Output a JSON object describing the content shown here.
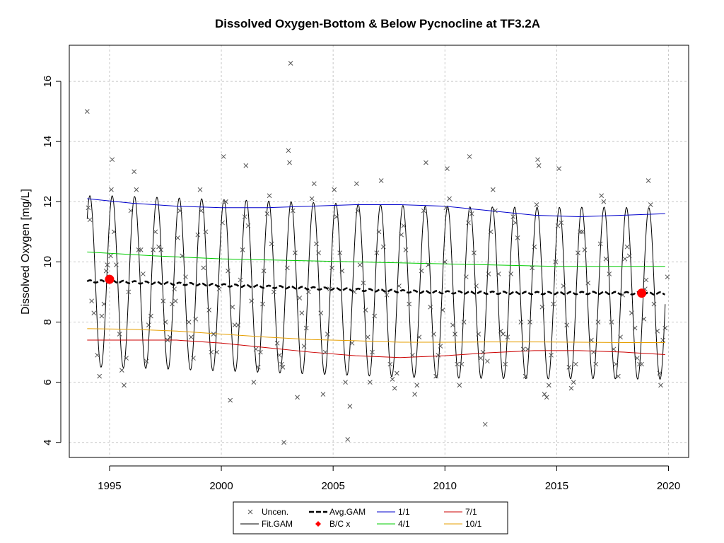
{
  "chart_data": {
    "type": "scatter",
    "title": "Dissolved Oxygen-Bottom & Below Pycnocline at TF3.2A",
    "xlabel": "",
    "ylabel": "Dissolved Oxygen [mg/L]",
    "xlim": [
      1993.2,
      2020.9
    ],
    "ylim": [
      3.5,
      17.2
    ],
    "x_ticks": [
      "1995",
      "2000",
      "2005",
      "2010",
      "2015",
      "2020"
    ],
    "y_ticks": [
      "4",
      "6",
      "8",
      "10",
      "12",
      "14",
      "16"
    ],
    "grid": true,
    "legend_position": "bottom",
    "legend": {
      "uncen": "Uncen.",
      "fit": "Fit.GAM",
      "avg": "Avg.GAM",
      "bc": "B/C x",
      "d11": "1/1",
      "d41": "4/1",
      "d71": "7/1",
      "d101": "10/1"
    },
    "colors": {
      "points": "#555555",
      "fit": "#000000",
      "avg": "#000000",
      "bc": "#ff0000",
      "d11": "#0000cc",
      "d41": "#00cc00",
      "d71": "#cc0000",
      "d101": "#e69f00",
      "grid": "#c8c8c8"
    },
    "fit_gam": {
      "amplitude": 2.85,
      "phase_peak_fraction": 0.12,
      "start": 1994.0,
      "end": 2019.85
    },
    "series": [
      {
        "name": "Avg.GAM",
        "x": [
          1994.0,
          1995.0,
          1997.0,
          1999.0,
          2001.0,
          2003.0,
          2005.0,
          2007.0,
          2009.0,
          2011.0,
          2013.0,
          2015.0,
          2017.0,
          2019.0,
          2019.85
        ],
        "y": [
          9.35,
          9.35,
          9.3,
          9.25,
          9.2,
          9.15,
          9.1,
          9.05,
          9.0,
          8.98,
          8.97,
          8.96,
          8.97,
          8.95,
          8.95
        ]
      },
      {
        "name": "1/1",
        "x": [
          1994.0,
          1996.0,
          1998.0,
          2000.0,
          2002.0,
          2004.0,
          2006.0,
          2008.0,
          2010.0,
          2012.0,
          2014.0,
          2016.0,
          2018.0,
          2019.85
        ],
        "y": [
          12.1,
          11.95,
          11.85,
          11.8,
          11.8,
          11.85,
          11.9,
          11.9,
          11.85,
          11.7,
          11.55,
          11.5,
          11.55,
          11.6
        ]
      },
      {
        "name": "4/1",
        "x": [
          1994.0,
          1997.0,
          2000.0,
          2003.0,
          2006.0,
          2009.0,
          2012.0,
          2015.0,
          2018.0,
          2019.85
        ],
        "y": [
          10.33,
          10.2,
          10.1,
          10.05,
          10.0,
          9.95,
          9.9,
          9.85,
          9.85,
          9.85
        ]
      },
      {
        "name": "7/1",
        "x": [
          1994.0,
          1996.0,
          1998.0,
          2000.0,
          2002.0,
          2004.0,
          2006.0,
          2008.0,
          2010.0,
          2012.0,
          2014.0,
          2016.0,
          2018.0,
          2019.85
        ],
        "y": [
          7.4,
          7.4,
          7.4,
          7.3,
          7.15,
          7.0,
          6.88,
          6.82,
          6.88,
          6.98,
          7.05,
          7.05,
          7.0,
          6.92
        ]
      },
      {
        "name": "10/1",
        "x": [
          1994.0,
          1996.0,
          1998.0,
          2000.0,
          2002.0,
          2004.0,
          2006.0,
          2008.0,
          2010.0,
          2012.0,
          2014.0,
          2016.0,
          2018.0,
          2019.85
        ],
        "y": [
          7.78,
          7.76,
          7.7,
          7.6,
          7.5,
          7.42,
          7.38,
          7.33,
          7.33,
          7.34,
          7.34,
          7.33,
          7.32,
          7.32
        ]
      }
    ],
    "bc_points": [
      {
        "x": 1995.0,
        "y": 9.42
      },
      {
        "x": 2018.8,
        "y": 8.96
      }
    ],
    "observations": [
      [
        1994.0,
        15.0
      ],
      [
        1994.05,
        11.8
      ],
      [
        1994.12,
        11.4
      ],
      [
        1994.2,
        8.7
      ],
      [
        1994.3,
        8.3
      ],
      [
        1994.45,
        6.9
      ],
      [
        1994.55,
        6.2
      ],
      [
        1994.65,
        8.2
      ],
      [
        1994.75,
        8.6
      ],
      [
        1994.85,
        9.7
      ],
      [
        1994.9,
        9.9
      ],
      [
        1995.05,
        10.2
      ],
      [
        1995.08,
        12.4
      ],
      [
        1995.12,
        13.4
      ],
      [
        1995.2,
        11.0
      ],
      [
        1995.3,
        9.9
      ],
      [
        1995.45,
        7.6
      ],
      [
        1995.55,
        6.4
      ],
      [
        1995.65,
        5.9
      ],
      [
        1995.75,
        6.8
      ],
      [
        1995.85,
        9.0
      ],
      [
        1995.95,
        11.7
      ],
      [
        1996.1,
        13.0
      ],
      [
        1996.2,
        12.4
      ],
      [
        1996.3,
        10.4
      ],
      [
        1996.4,
        10.4
      ],
      [
        1996.5,
        9.6
      ],
      [
        1996.65,
        6.7
      ],
      [
        1996.75,
        7.9
      ],
      [
        1996.85,
        8.2
      ],
      [
        1996.95,
        10.4
      ],
      [
        1997.05,
        11.0
      ],
      [
        1997.2,
        10.5
      ],
      [
        1997.3,
        10.4
      ],
      [
        1997.4,
        8.7
      ],
      [
        1997.5,
        8.0
      ],
      [
        1997.6,
        7.4
      ],
      [
        1997.7,
        7.5
      ],
      [
        1997.8,
        8.6
      ],
      [
        1997.9,
        9.1
      ],
      [
        1997.95,
        8.7
      ],
      [
        1998.05,
        10.8
      ],
      [
        1998.15,
        11.7
      ],
      [
        1998.25,
        10.2
      ],
      [
        1998.4,
        9.5
      ],
      [
        1998.55,
        8.0
      ],
      [
        1998.65,
        7.5
      ],
      [
        1998.75,
        6.8
      ],
      [
        1998.85,
        8.1
      ],
      [
        1998.95,
        10.9
      ],
      [
        1999.05,
        12.4
      ],
      [
        1999.1,
        11.7
      ],
      [
        1999.2,
        9.8
      ],
      [
        1999.3,
        11.0
      ],
      [
        1999.45,
        8.4
      ],
      [
        1999.55,
        7.0
      ],
      [
        1999.65,
        7.6
      ],
      [
        1999.8,
        7.0
      ],
      [
        1999.9,
        9.1
      ],
      [
        2000.05,
        11.3
      ],
      [
        2000.1,
        13.5
      ],
      [
        2000.2,
        12.0
      ],
      [
        2000.3,
        9.7
      ],
      [
        2000.4,
        5.4
      ],
      [
        2000.5,
        8.5
      ],
      [
        2000.6,
        7.9
      ],
      [
        2000.75,
        7.9
      ],
      [
        2000.85,
        9.4
      ],
      [
        2000.95,
        10.4
      ],
      [
        2001.05,
        11.5
      ],
      [
        2001.1,
        13.2
      ],
      [
        2001.2,
        11.2
      ],
      [
        2001.35,
        8.7
      ],
      [
        2001.45,
        6.0
      ],
      [
        2001.55,
        7.1
      ],
      [
        2001.65,
        6.5
      ],
      [
        2001.75,
        7.0
      ],
      [
        2001.85,
        8.6
      ],
      [
        2001.9,
        9.7
      ],
      [
        2002.05,
        11.6
      ],
      [
        2002.15,
        12.2
      ],
      [
        2002.25,
        10.6
      ],
      [
        2002.35,
        9.0
      ],
      [
        2002.5,
        7.3
      ],
      [
        2002.6,
        6.9
      ],
      [
        2002.7,
        6.6
      ],
      [
        2002.75,
        6.5
      ],
      [
        2002.8,
        4.0
      ],
      [
        2002.95,
        9.8
      ],
      [
        2003.0,
        13.7
      ],
      [
        2003.05,
        13.3
      ],
      [
        2003.1,
        16.6
      ],
      [
        2003.2,
        11.7
      ],
      [
        2003.3,
        10.3
      ],
      [
        2003.4,
        5.5
      ],
      [
        2003.5,
        8.8
      ],
      [
        2003.6,
        8.3
      ],
      [
        2003.7,
        7.2
      ],
      [
        2003.8,
        7.8
      ],
      [
        2003.9,
        9.0
      ],
      [
        2004.05,
        12.1
      ],
      [
        2004.15,
        12.6
      ],
      [
        2004.25,
        10.6
      ],
      [
        2004.35,
        10.3
      ],
      [
        2004.45,
        8.3
      ],
      [
        2004.55,
        5.6
      ],
      [
        2004.65,
        7.0
      ],
      [
        2004.75,
        7.6
      ],
      [
        2004.85,
        9.1
      ],
      [
        2004.95,
        9.8
      ],
      [
        2005.05,
        12.4
      ],
      [
        2005.15,
        11.5
      ],
      [
        2005.3,
        10.3
      ],
      [
        2005.4,
        9.7
      ],
      [
        2005.55,
        6.0
      ],
      [
        2005.65,
        4.1
      ],
      [
        2005.75,
        5.2
      ],
      [
        2005.85,
        7.3
      ],
      [
        2005.95,
        9.0
      ],
      [
        2006.05,
        12.6
      ],
      [
        2006.1,
        11.7
      ],
      [
        2006.2,
        9.9
      ],
      [
        2006.35,
        9.3
      ],
      [
        2006.45,
        8.4
      ],
      [
        2006.55,
        7.5
      ],
      [
        2006.65,
        6.0
      ],
      [
        2006.75,
        7.0
      ],
      [
        2006.85,
        8.2
      ],
      [
        2006.95,
        10.3
      ],
      [
        2007.05,
        11.0
      ],
      [
        2007.15,
        12.7
      ],
      [
        2007.25,
        10.5
      ],
      [
        2007.4,
        8.9
      ],
      [
        2007.55,
        6.6
      ],
      [
        2007.65,
        6.1
      ],
      [
        2007.75,
        5.8
      ],
      [
        2007.85,
        6.3
      ],
      [
        2007.95,
        9.2
      ],
      [
        2008.05,
        10.9
      ],
      [
        2008.15,
        11.2
      ],
      [
        2008.25,
        10.4
      ],
      [
        2008.4,
        8.6
      ],
      [
        2008.55,
        6.9
      ],
      [
        2008.65,
        5.6
      ],
      [
        2008.75,
        5.9
      ],
      [
        2008.85,
        7.5
      ],
      [
        2008.95,
        9.7
      ],
      [
        2009.05,
        11.7
      ],
      [
        2009.15,
        13.3
      ],
      [
        2009.25,
        9.9
      ],
      [
        2009.35,
        8.5
      ],
      [
        2009.5,
        7.6
      ],
      [
        2009.6,
        6.2
      ],
      [
        2009.7,
        6.9
      ],
      [
        2009.8,
        7.2
      ],
      [
        2009.9,
        8.4
      ],
      [
        2010.0,
        10.0
      ],
      [
        2010.05,
        11.8
      ],
      [
        2010.1,
        13.1
      ],
      [
        2010.2,
        12.1
      ],
      [
        2010.35,
        7.9
      ],
      [
        2010.45,
        7.6
      ],
      [
        2010.55,
        6.6
      ],
      [
        2010.65,
        5.9
      ],
      [
        2010.75,
        6.6
      ],
      [
        2010.85,
        8.0
      ],
      [
        2010.95,
        9.5
      ],
      [
        2011.05,
        11.3
      ],
      [
        2011.1,
        13.5
      ],
      [
        2011.2,
        11.6
      ],
      [
        2011.3,
        10.3
      ],
      [
        2011.4,
        9.2
      ],
      [
        2011.5,
        7.6
      ],
      [
        2011.6,
        6.8
      ],
      [
        2011.7,
        7.0
      ],
      [
        2011.8,
        4.6
      ],
      [
        2011.9,
        6.7
      ],
      [
        2011.95,
        9.6
      ],
      [
        2012.05,
        11.0
      ],
      [
        2012.15,
        12.4
      ],
      [
        2012.25,
        11.7
      ],
      [
        2012.4,
        9.6
      ],
      [
        2012.5,
        7.7
      ],
      [
        2012.6,
        7.6
      ],
      [
        2012.7,
        6.6
      ],
      [
        2012.8,
        7.5
      ],
      [
        2012.95,
        9.6
      ],
      [
        2013.05,
        11.5
      ],
      [
        2013.15,
        11.3
      ],
      [
        2013.25,
        10.8
      ],
      [
        2013.4,
        8.0
      ],
      [
        2013.5,
        7.1
      ],
      [
        2013.6,
        6.2
      ],
      [
        2013.7,
        7.1
      ],
      [
        2013.8,
        8.0
      ],
      [
        2013.9,
        9.8
      ],
      [
        2014.0,
        10.5
      ],
      [
        2014.1,
        11.9
      ],
      [
        2014.15,
        13.4
      ],
      [
        2014.2,
        13.2
      ],
      [
        2014.35,
        8.5
      ],
      [
        2014.45,
        5.6
      ],
      [
        2014.55,
        5.5
      ],
      [
        2014.65,
        5.9
      ],
      [
        2014.75,
        6.9
      ],
      [
        2014.85,
        8.6
      ],
      [
        2014.95,
        10.0
      ],
      [
        2015.05,
        11.2
      ],
      [
        2015.1,
        13.1
      ],
      [
        2015.2,
        11.3
      ],
      [
        2015.3,
        9.2
      ],
      [
        2015.45,
        7.9
      ],
      [
        2015.55,
        6.5
      ],
      [
        2015.65,
        5.8
      ],
      [
        2015.75,
        6.0
      ],
      [
        2015.85,
        6.6
      ],
      [
        2015.95,
        10.3
      ],
      [
        2016.05,
        11.0
      ],
      [
        2016.15,
        11.0
      ],
      [
        2016.25,
        10.4
      ],
      [
        2016.4,
        9.3
      ],
      [
        2016.55,
        7.4
      ],
      [
        2016.65,
        7.0
      ],
      [
        2016.75,
        6.6
      ],
      [
        2016.85,
        8.0
      ],
      [
        2016.95,
        10.6
      ],
      [
        2017.0,
        12.2
      ],
      [
        2017.1,
        12.0
      ],
      [
        2017.2,
        10.1
      ],
      [
        2017.35,
        9.6
      ],
      [
        2017.45,
        8.0
      ],
      [
        2017.55,
        7.1
      ],
      [
        2017.65,
        6.6
      ],
      [
        2017.75,
        6.2
      ],
      [
        2017.85,
        7.5
      ],
      [
        2017.95,
        8.9
      ],
      [
        2018.05,
        10.1
      ],
      [
        2018.15,
        10.5
      ],
      [
        2018.25,
        10.2
      ],
      [
        2018.35,
        8.3
      ],
      [
        2018.5,
        7.8
      ],
      [
        2018.6,
        6.8
      ],
      [
        2018.7,
        6.6
      ],
      [
        2018.8,
        6.6
      ],
      [
        2018.9,
        8.1
      ],
      [
        2018.95,
        9.1
      ],
      [
        2019.0,
        9.4
      ],
      [
        2019.1,
        12.7
      ],
      [
        2019.2,
        11.9
      ],
      [
        2019.35,
        8.6
      ],
      [
        2019.5,
        7.7
      ],
      [
        2019.6,
        6.3
      ],
      [
        2019.65,
        5.9
      ],
      [
        2019.75,
        7.4
      ],
      [
        2019.85,
        7.8
      ],
      [
        2019.95,
        9.5
      ]
    ]
  }
}
